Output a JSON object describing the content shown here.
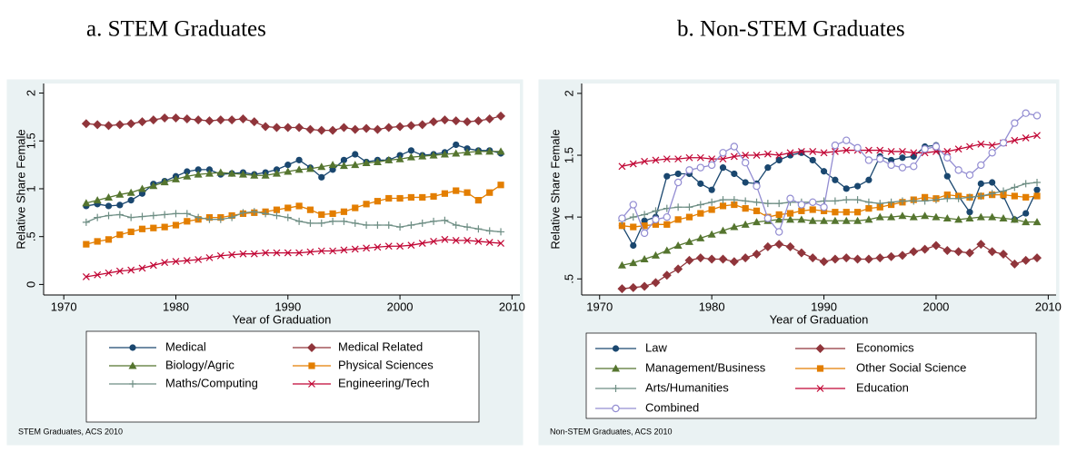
{
  "chart_data": [
    {
      "type": "line",
      "title": "a.   STEM Graduates",
      "xlabel": "Year of Graduation",
      "ylabel": "Relative Share Female",
      "note": "STEM Graduates, ACS 2010",
      "xlim": [
        1968.2,
        2010.7
      ],
      "xticks": [
        1970,
        1980,
        1990,
        2000,
        2010
      ],
      "ylim": [
        -0.11,
        2.1
      ],
      "yticks": [
        0,
        {
          "value": 0.5,
          "label": ".5"
        },
        1,
        1.5,
        2
      ],
      "legend": "bottom",
      "legend_columns": 2,
      "x": [
        1972,
        1973,
        1974,
        1975,
        1976,
        1977,
        1978,
        1979,
        1980,
        1981,
        1982,
        1983,
        1984,
        1985,
        1986,
        1987,
        1988,
        1989,
        1990,
        1991,
        1992,
        1993,
        1994,
        1995,
        1996,
        1997,
        1998,
        1999,
        2000,
        2001,
        2002,
        2003,
        2004,
        2005,
        2006,
        2007,
        2008,
        2009
      ],
      "series": [
        {
          "name": "Medical",
          "color": "#1a476f",
          "marker": "circle",
          "values": [
            0.82,
            0.84,
            0.82,
            0.83,
            0.88,
            0.95,
            1.05,
            1.08,
            1.13,
            1.18,
            1.2,
            1.2,
            1.15,
            1.16,
            1.17,
            1.15,
            1.17,
            1.2,
            1.25,
            1.3,
            1.22,
            1.12,
            1.2,
            1.3,
            1.36,
            1.28,
            1.3,
            1.3,
            1.35,
            1.4,
            1.35,
            1.36,
            1.38,
            1.46,
            1.42,
            1.4,
            1.4,
            1.37
          ]
        },
        {
          "name": "Medical Related",
          "color": "#90353b",
          "marker": "diamond",
          "values": [
            1.68,
            1.67,
            1.66,
            1.67,
            1.68,
            1.7,
            1.72,
            1.74,
            1.74,
            1.73,
            1.72,
            1.71,
            1.72,
            1.72,
            1.73,
            1.7,
            1.65,
            1.64,
            1.64,
            1.64,
            1.62,
            1.61,
            1.61,
            1.64,
            1.62,
            1.63,
            1.62,
            1.64,
            1.65,
            1.66,
            1.67,
            1.7,
            1.72,
            1.71,
            1.7,
            1.71,
            1.73,
            1.76
          ]
        },
        {
          "name": "Biology/Agric",
          "color": "#55752f",
          "marker": "triangle",
          "values": [
            0.85,
            0.88,
            0.91,
            0.94,
            0.96,
            1.0,
            1.03,
            1.07,
            1.1,
            1.13,
            1.15,
            1.16,
            1.17,
            1.16,
            1.15,
            1.14,
            1.14,
            1.16,
            1.18,
            1.2,
            1.21,
            1.23,
            1.25,
            1.24,
            1.25,
            1.27,
            1.28,
            1.3,
            1.31,
            1.33,
            1.34,
            1.35,
            1.36,
            1.37,
            1.38,
            1.39,
            1.39,
            1.39
          ]
        },
        {
          "name": "Physical Sciences",
          "color": "#e37e00",
          "marker": "square",
          "values": [
            0.42,
            0.45,
            0.47,
            0.52,
            0.55,
            0.58,
            0.59,
            0.6,
            0.62,
            0.66,
            0.68,
            0.7,
            0.7,
            0.72,
            0.74,
            0.75,
            0.76,
            0.78,
            0.8,
            0.82,
            0.78,
            0.73,
            0.74,
            0.76,
            0.8,
            0.84,
            0.87,
            0.9,
            0.9,
            0.91,
            0.91,
            0.92,
            0.95,
            0.98,
            0.96,
            0.88,
            0.96,
            1.04
          ]
        },
        {
          "name": "Maths/Computing",
          "color": "#6e8e84",
          "marker": "plus",
          "values": [
            0.65,
            0.7,
            0.72,
            0.73,
            0.7,
            0.71,
            0.72,
            0.73,
            0.74,
            0.74,
            0.7,
            0.68,
            0.68,
            0.7,
            0.75,
            0.76,
            0.74,
            0.72,
            0.7,
            0.66,
            0.64,
            0.64,
            0.66,
            0.66,
            0.64,
            0.62,
            0.62,
            0.62,
            0.6,
            0.62,
            0.64,
            0.66,
            0.67,
            0.62,
            0.6,
            0.58,
            0.56,
            0.55
          ]
        },
        {
          "name": "Engineering/Tech",
          "color": "#c10534",
          "marker": "x",
          "values": [
            0.08,
            0.1,
            0.12,
            0.14,
            0.15,
            0.17,
            0.2,
            0.23,
            0.24,
            0.25,
            0.26,
            0.28,
            0.3,
            0.31,
            0.32,
            0.32,
            0.33,
            0.33,
            0.33,
            0.33,
            0.34,
            0.35,
            0.35,
            0.36,
            0.37,
            0.38,
            0.39,
            0.4,
            0.4,
            0.41,
            0.43,
            0.45,
            0.47,
            0.46,
            0.46,
            0.45,
            0.44,
            0.43
          ]
        }
      ]
    },
    {
      "type": "line",
      "title": "b. Non-STEM Graduates",
      "xlabel": "Year of Graduation",
      "ylabel": "Relative Share Female",
      "note": "Non-STEM Graduates, ACS 2010",
      "xlim": [
        1968.4,
        2010.7
      ],
      "xticks": [
        1970,
        1980,
        1990,
        2000,
        2010
      ],
      "ylim": [
        0.37,
        2.08
      ],
      "yticks": [
        {
          "value": 0.5,
          "label": ".5"
        },
        1,
        1.5,
        2
      ],
      "legend": "bottom",
      "legend_columns": 2,
      "x": [
        1972,
        1973,
        1974,
        1975,
        1976,
        1977,
        1978,
        1979,
        1980,
        1981,
        1982,
        1983,
        1984,
        1985,
        1986,
        1987,
        1988,
        1989,
        1990,
        1991,
        1992,
        1993,
        1994,
        1995,
        1996,
        1997,
        1998,
        1999,
        2000,
        2001,
        2002,
        2003,
        2004,
        2005,
        2006,
        2007,
        2008,
        2009
      ],
      "series": [
        {
          "name": "Law",
          "color": "#1a476f",
          "marker": "circle",
          "values": [
            0.93,
            0.77,
            0.97,
            1.0,
            1.33,
            1.35,
            1.35,
            1.27,
            1.22,
            1.4,
            1.35,
            1.28,
            1.27,
            1.4,
            1.46,
            1.5,
            1.52,
            1.46,
            1.37,
            1.3,
            1.23,
            1.25,
            1.3,
            1.49,
            1.46,
            1.48,
            1.49,
            1.57,
            1.58,
            1.33,
            1.17,
            1.04,
            1.27,
            1.28,
            1.17,
            0.98,
            1.03,
            1.22
          ]
        },
        {
          "name": "Economics",
          "color": "#90353b",
          "marker": "diamond",
          "values": [
            0.42,
            0.43,
            0.44,
            0.47,
            0.53,
            0.58,
            0.65,
            0.67,
            0.66,
            0.66,
            0.64,
            0.67,
            0.7,
            0.76,
            0.78,
            0.76,
            0.71,
            0.67,
            0.64,
            0.66,
            0.67,
            0.66,
            0.66,
            0.67,
            0.68,
            0.69,
            0.72,
            0.74,
            0.77,
            0.73,
            0.72,
            0.71,
            0.78,
            0.72,
            0.7,
            0.62,
            0.65,
            0.67
          ]
        },
        {
          "name": "Management/Business",
          "color": "#55752f",
          "marker": "triangle",
          "values": [
            0.61,
            0.63,
            0.66,
            0.69,
            0.73,
            0.77,
            0.8,
            0.83,
            0.86,
            0.89,
            0.92,
            0.94,
            0.96,
            0.97,
            0.98,
            0.98,
            0.98,
            0.97,
            0.97,
            0.97,
            0.97,
            0.97,
            0.98,
            1.0,
            1.0,
            1.01,
            1.0,
            1.01,
            1.0,
            0.99,
            0.98,
            0.99,
            1.0,
            1.0,
            0.99,
            0.98,
            0.96,
            0.96
          ]
        },
        {
          "name": "Other Social Science",
          "color": "#e37e00",
          "marker": "square",
          "values": [
            0.93,
            0.92,
            0.93,
            0.94,
            0.94,
            0.98,
            1.0,
            1.03,
            1.06,
            1.09,
            1.1,
            1.07,
            1.05,
            1.0,
            1.02,
            1.03,
            1.05,
            1.06,
            1.05,
            1.04,
            1.04,
            1.04,
            1.07,
            1.08,
            1.1,
            1.12,
            1.14,
            1.16,
            1.15,
            1.18,
            1.17,
            1.16,
            1.17,
            1.18,
            1.18,
            1.17,
            1.16,
            1.17
          ]
        },
        {
          "name": "Arts/Humanities",
          "color": "#6e8e84",
          "marker": "plus",
          "values": [
            0.97,
            1.0,
            1.02,
            1.05,
            1.07,
            1.08,
            1.08,
            1.1,
            1.12,
            1.14,
            1.14,
            1.13,
            1.12,
            1.11,
            1.11,
            1.12,
            1.12,
            1.12,
            1.13,
            1.13,
            1.14,
            1.14,
            1.12,
            1.11,
            1.12,
            1.13,
            1.13,
            1.13,
            1.14,
            1.15,
            1.15,
            1.16,
            1.17,
            1.19,
            1.21,
            1.24,
            1.27,
            1.28
          ]
        },
        {
          "name": "Education",
          "color": "#c10534",
          "marker": "x",
          "values": [
            1.41,
            1.43,
            1.45,
            1.46,
            1.47,
            1.47,
            1.48,
            1.48,
            1.47,
            1.47,
            1.49,
            1.5,
            1.5,
            1.51,
            1.5,
            1.52,
            1.53,
            1.53,
            1.52,
            1.53,
            1.54,
            1.54,
            1.54,
            1.54,
            1.53,
            1.53,
            1.52,
            1.52,
            1.53,
            1.53,
            1.55,
            1.57,
            1.59,
            1.58,
            1.6,
            1.62,
            1.64,
            1.66
          ]
        },
        {
          "name": "Combined",
          "color": "#938dd2",
          "marker": "hollow-circle",
          "values": [
            0.99,
            1.1,
            0.87,
            0.98,
            1.0,
            1.28,
            1.38,
            1.4,
            1.42,
            1.52,
            1.57,
            1.44,
            1.25,
            0.99,
            0.88,
            1.15,
            1.1,
            1.12,
            1.08,
            1.58,
            1.62,
            1.56,
            1.46,
            1.47,
            1.42,
            1.4,
            1.41,
            1.55,
            1.57,
            1.48,
            1.38,
            1.34,
            1.42,
            1.52,
            1.6,
            1.76,
            1.84,
            1.82
          ]
        }
      ]
    }
  ]
}
